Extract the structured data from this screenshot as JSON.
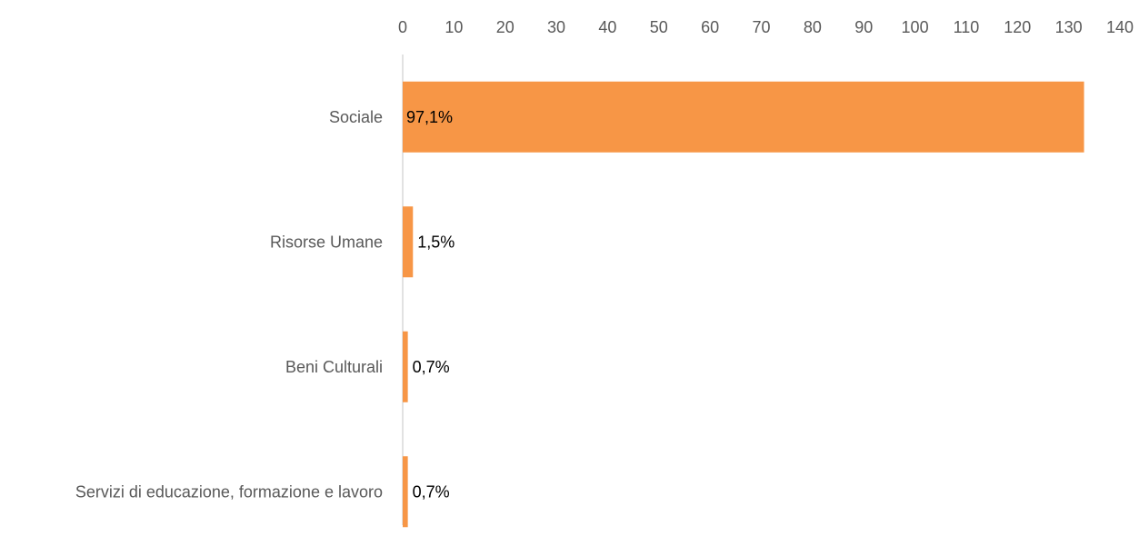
{
  "chart_data": {
    "type": "bar",
    "orientation": "horizontal",
    "categories": [
      "Sociale",
      "Risorse Umane",
      "Beni Culturali",
      "Servizi di educazione, formazione e lavoro"
    ],
    "values": [
      133,
      2,
      1,
      1
    ],
    "data_labels": [
      "97,1%",
      "1,5%",
      "0,7%",
      "0,7%"
    ],
    "xlim": [
      0,
      140
    ],
    "x_ticks": [
      0,
      10,
      20,
      30,
      40,
      50,
      60,
      70,
      80,
      90,
      100,
      110,
      120,
      130,
      140
    ],
    "x_axis_position": "top",
    "grid": false,
    "legend": "none",
    "bar_color": "#F79646",
    "axis_color": "#D9D9D9"
  }
}
